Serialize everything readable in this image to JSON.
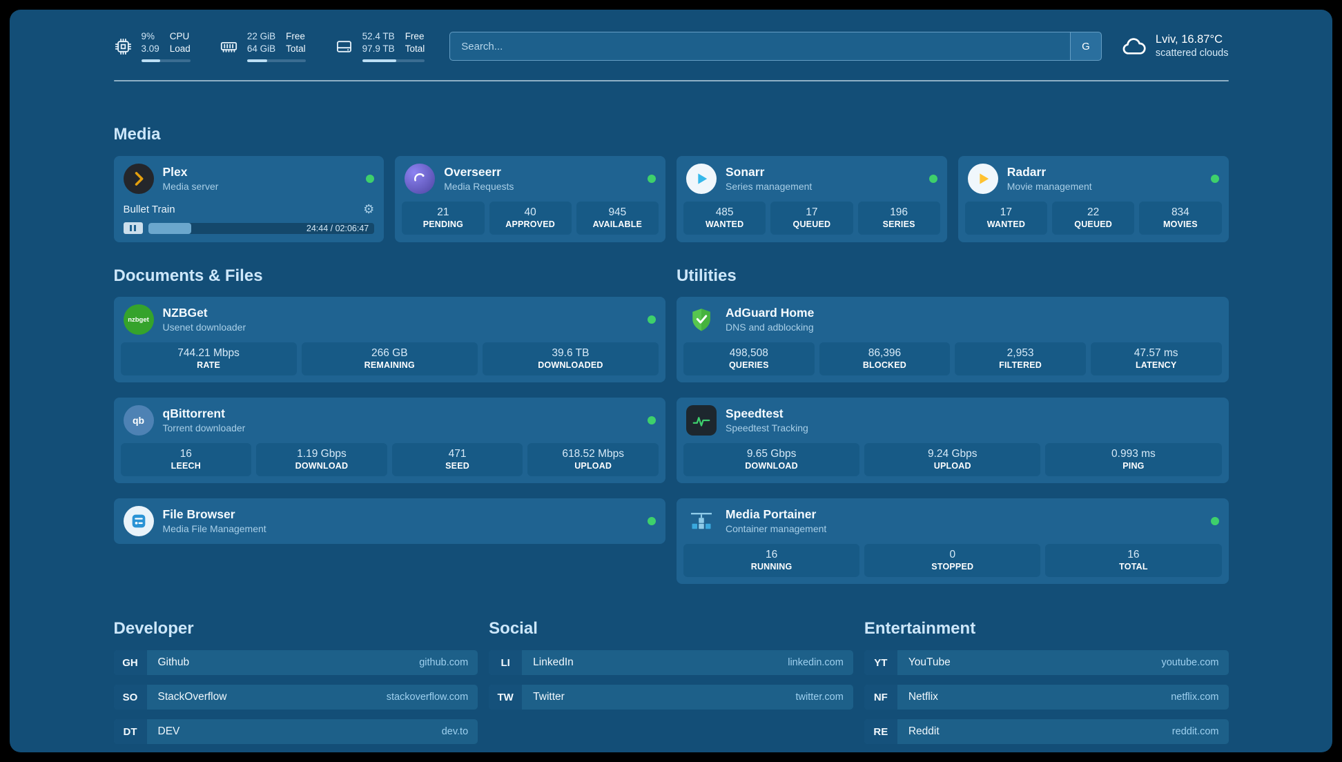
{
  "theme": {
    "background": "#134e77",
    "card": "#1f6391",
    "tile": "#175a86",
    "status_green": "#3ed06b"
  },
  "topbar": {
    "metrics": [
      {
        "icon": "cpu-chip-icon",
        "values": [
          "9%",
          "3.09"
        ],
        "labels": [
          "CPU",
          "Load"
        ],
        "progress_pct": 38
      },
      {
        "icon": "ram-icon",
        "values": [
          "22 GiB",
          "64 GiB"
        ],
        "labels": [
          "Free",
          "Total"
        ],
        "progress_pct": 34
      },
      {
        "icon": "disk-icon",
        "values": [
          "52.4 TB",
          "97.9 TB"
        ],
        "labels": [
          "Free",
          "Total"
        ],
        "progress_pct": 54
      }
    ],
    "search": {
      "placeholder": "Search...",
      "button": "G"
    },
    "weather": {
      "summary": "Lviv, 16.87°C",
      "condition": "scattered clouds"
    }
  },
  "section_titles": {
    "media": "Media",
    "documents": "Documents & Files",
    "utilities": "Utilities",
    "developer": "Developer",
    "social": "Social",
    "entertainment": "Entertainment"
  },
  "apps": {
    "plex": {
      "name": "Plex",
      "subtitle": "Media server",
      "now_playing": "Bullet Train",
      "time": "24:44 / 02:06:47",
      "progress_pct": 19
    },
    "overseerr": {
      "name": "Overseerr",
      "subtitle": "Media Requests",
      "stats": [
        {
          "value": "21",
          "label": "PENDING"
        },
        {
          "value": "40",
          "label": "APPROVED"
        },
        {
          "value": "945",
          "label": "AVAILABLE"
        }
      ]
    },
    "sonarr": {
      "name": "Sonarr",
      "subtitle": "Series management",
      "stats": [
        {
          "value": "485",
          "label": "WANTED"
        },
        {
          "value": "17",
          "label": "QUEUED"
        },
        {
          "value": "196",
          "label": "SERIES"
        }
      ]
    },
    "radarr": {
      "name": "Radarr",
      "subtitle": "Movie management",
      "stats": [
        {
          "value": "17",
          "label": "WANTED"
        },
        {
          "value": "22",
          "label": "QUEUED"
        },
        {
          "value": "834",
          "label": "MOVIES"
        }
      ]
    },
    "nzbget": {
      "name": "NZBGet",
      "subtitle": "Usenet downloader",
      "icon_text": "nzbget",
      "stats": [
        {
          "value": "744.21 Mbps",
          "label": "RATE"
        },
        {
          "value": "266 GB",
          "label": "REMAINING"
        },
        {
          "value": "39.6 TB",
          "label": "DOWNLOADED"
        }
      ]
    },
    "qbittorrent": {
      "name": "qBittorrent",
      "subtitle": "Torrent downloader",
      "icon_text": "qb",
      "stats": [
        {
          "value": "16",
          "label": "LEECH"
        },
        {
          "value": "1.19 Gbps",
          "label": "DOWNLOAD"
        },
        {
          "value": "471",
          "label": "SEED"
        },
        {
          "value": "618.52 Mbps",
          "label": "UPLOAD"
        }
      ]
    },
    "filebrowser": {
      "name": "File Browser",
      "subtitle": "Media File Management"
    },
    "adguard": {
      "name": "AdGuard Home",
      "subtitle": "DNS and adblocking",
      "stats": [
        {
          "value": "498,508",
          "label": "QUERIES"
        },
        {
          "value": "86,396",
          "label": "BLOCKED"
        },
        {
          "value": "2,953",
          "label": "FILTERED"
        },
        {
          "value": "47.57 ms",
          "label": "LATENCY"
        }
      ]
    },
    "speedtest": {
      "name": "Speedtest",
      "subtitle": "Speedtest Tracking",
      "stats": [
        {
          "value": "9.65 Gbps",
          "label": "DOWNLOAD"
        },
        {
          "value": "9.24 Gbps",
          "label": "UPLOAD"
        },
        {
          "value": "0.993 ms",
          "label": "PING"
        }
      ]
    },
    "portainer": {
      "name": "Media Portainer",
      "subtitle": "Container management",
      "stats": [
        {
          "value": "16",
          "label": "RUNNING"
        },
        {
          "value": "0",
          "label": "STOPPED"
        },
        {
          "value": "16",
          "label": "TOTAL"
        }
      ]
    }
  },
  "bookmarks": {
    "developer": [
      {
        "abbr": "GH",
        "name": "Github",
        "url": "github.com"
      },
      {
        "abbr": "SO",
        "name": "StackOverflow",
        "url": "stackoverflow.com"
      },
      {
        "abbr": "DT",
        "name": "DEV",
        "url": "dev.to"
      }
    ],
    "social": [
      {
        "abbr": "LI",
        "name": "LinkedIn",
        "url": "linkedin.com"
      },
      {
        "abbr": "TW",
        "name": "Twitter",
        "url": "twitter.com"
      }
    ],
    "entertainment": [
      {
        "abbr": "YT",
        "name": "YouTube",
        "url": "youtube.com"
      },
      {
        "abbr": "NF",
        "name": "Netflix",
        "url": "netflix.com"
      },
      {
        "abbr": "RE",
        "name": "Reddit",
        "url": "reddit.com"
      }
    ]
  }
}
